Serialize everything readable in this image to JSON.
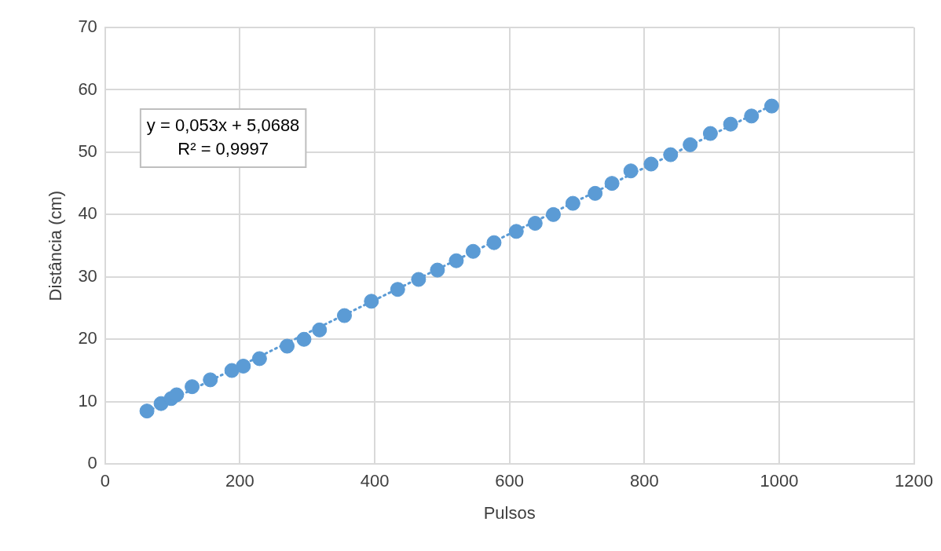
{
  "chart_data": {
    "type": "scatter",
    "xlabel": "Pulsos",
    "ylabel": "Distância (cm)",
    "annotations": [
      "y = 0,053x + 5,0688",
      "R² = 0,9997"
    ],
    "xlim": [
      0,
      1200
    ],
    "xticks": [
      0,
      200,
      400,
      600,
      800,
      1000,
      1200
    ],
    "ylim": [
      0,
      70
    ],
    "yticks": [
      0,
      10,
      20,
      30,
      40,
      50,
      60,
      70
    ],
    "grid": true,
    "legend": false,
    "series": [
      {
        "color": "#5b9bd5",
        "marker": "circle",
        "x": [
          62,
          83,
          98,
          106,
          129,
          156,
          188,
          205,
          229,
          270,
          295,
          318,
          355,
          395,
          434,
          465,
          493,
          521,
          546,
          577,
          610,
          638,
          665,
          694,
          727,
          752,
          780,
          810,
          839,
          868,
          898,
          928,
          959,
          989
        ],
        "values": [
          8.5,
          9.7,
          10.5,
          11.1,
          12.4,
          13.5,
          15.0,
          15.7,
          16.9,
          18.9,
          20.0,
          21.5,
          23.8,
          26.1,
          28.0,
          29.6,
          31.1,
          32.6,
          34.1,
          35.5,
          37.3,
          38.6,
          40.0,
          41.8,
          43.4,
          45.0,
          47.0,
          48.1,
          49.6,
          51.2,
          53.0,
          54.5,
          55.8,
          57.4
        ]
      },
      {
        "type": "line",
        "color": "#5b9bd5",
        "line_style": "dotted",
        "marker": "none",
        "x": [
          62,
          989
        ],
        "values": [
          8.4,
          57.5
        ]
      }
    ]
  }
}
